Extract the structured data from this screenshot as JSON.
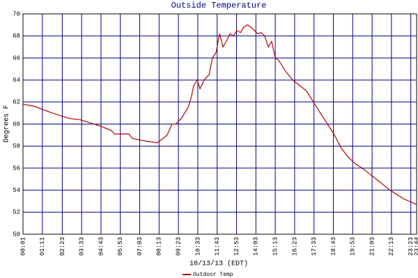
{
  "chart_data": {
    "type": "line",
    "title": "Outside Temperature",
    "ylabel": "Degrees F",
    "xlabel": "10/13/13 (EDT)",
    "x": [
      1,
      44,
      107,
      145,
      170,
      207,
      245,
      283,
      321,
      333,
      384,
      396,
      434,
      459,
      485,
      497,
      522,
      540,
      553,
      573,
      598,
      610,
      618,
      631,
      641,
      656,
      674,
      686,
      699,
      712,
      724,
      736,
      749,
      762,
      774,
      787,
      799,
      812,
      825,
      837,
      850,
      862,
      875,
      888,
      900,
      913,
      925,
      950,
      976,
      1001,
      1026,
      1051,
      1076,
      1102,
      1127,
      1152,
      1177,
      1202,
      1227,
      1253,
      1278,
      1303,
      1328,
      1353,
      1378,
      1424
    ],
    "series": [
      {
        "name": "Outdoor Temp",
        "color": "#b00000",
        "values": [
          61.8,
          61.6,
          61.0,
          60.7,
          60.5,
          60.4,
          60.1,
          59.8,
          59.4,
          59.1,
          59.1,
          58.7,
          58.5,
          58.4,
          58.3,
          58.5,
          59.0,
          60.0,
          60.0,
          60.5,
          61.5,
          62.5,
          63.5,
          64.0,
          63.2,
          64.0,
          64.5,
          66.0,
          66.5,
          68.2,
          67.0,
          67.5,
          68.2,
          68.0,
          68.5,
          68.3,
          68.8,
          69.0,
          68.8,
          68.5,
          68.2,
          68.3,
          68.0,
          67.0,
          67.5,
          66.0,
          65.8,
          64.8,
          64.0,
          63.5,
          63.0,
          62.0,
          61.0,
          60.0,
          59.0,
          57.8,
          57.0,
          56.4,
          56.0,
          55.5,
          55.0,
          54.5,
          54.0,
          53.6,
          53.2,
          52.7
        ]
      }
    ],
    "xlim": [
      1,
      1424
    ],
    "xticks": [
      {
        "value": 1,
        "label": "00:01"
      },
      {
        "value": 71,
        "label": "01:11"
      },
      {
        "value": 143,
        "label": "02:23"
      },
      {
        "value": 213,
        "label": "03:33"
      },
      {
        "value": 283,
        "label": "04:43"
      },
      {
        "value": 353,
        "label": "05:53"
      },
      {
        "value": 423,
        "label": "07:03"
      },
      {
        "value": 493,
        "label": "08:13"
      },
      {
        "value": 563,
        "label": "09:23"
      },
      {
        "value": 633,
        "label": "10:33"
      },
      {
        "value": 703,
        "label": "11:43"
      },
      {
        "value": 773,
        "label": "12:53"
      },
      {
        "value": 843,
        "label": "14:03"
      },
      {
        "value": 913,
        "label": "15:13"
      },
      {
        "value": 983,
        "label": "16:23"
      },
      {
        "value": 1053,
        "label": "17:33"
      },
      {
        "value": 1123,
        "label": "18:43"
      },
      {
        "value": 1193,
        "label": "19:53"
      },
      {
        "value": 1263,
        "label": "21:03"
      },
      {
        "value": 1333,
        "label": "22:13"
      },
      {
        "value": 1403,
        "label": "23:23"
      },
      {
        "value": 1424,
        "label": "23:44"
      }
    ],
    "ylim": [
      50,
      70
    ],
    "yticks": [
      50,
      52,
      54,
      56,
      58,
      60,
      62,
      64,
      66,
      68,
      70
    ],
    "grid": true,
    "grid_color": "#000080",
    "legend": "bottom"
  }
}
